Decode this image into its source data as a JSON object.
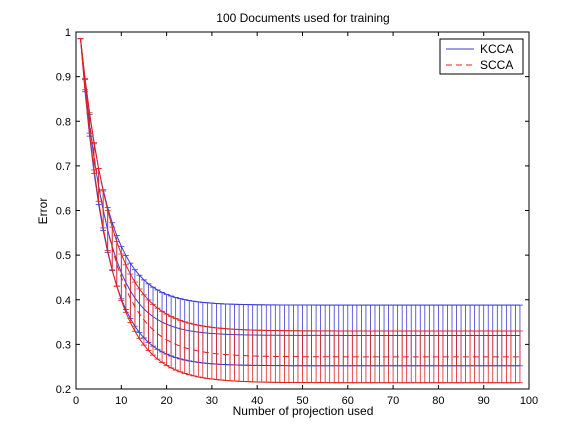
{
  "chart_data": {
    "type": "line",
    "title": "100 Documents used for training",
    "xlabel": "Number of projection used",
    "ylabel": "Error",
    "xlim": [
      0,
      100
    ],
    "ylim": [
      0.2,
      1.0
    ],
    "xticks": [
      0,
      10,
      20,
      30,
      40,
      50,
      60,
      70,
      80,
      90,
      100
    ],
    "yticks": [
      0.2,
      0.3,
      0.4,
      0.5,
      0.6,
      0.7,
      0.8,
      0.9,
      1.0
    ],
    "xtick_labels": [
      "0",
      "10",
      "20",
      "30",
      "40",
      "50",
      "60",
      "70",
      "80",
      "90",
      "100"
    ],
    "ytick_labels": [
      "0.2",
      "0.3",
      "0.4",
      "0.5",
      "0.6",
      "0.7",
      "0.8",
      "0.9",
      "1"
    ],
    "grid": false,
    "legend_position": "top-right",
    "series": [
      {
        "name": "KCCA",
        "color": "#3b3bd6",
        "line_style": "solid",
        "mean": {
          "x0": 1,
          "x1": 98,
          "y0": 0.985,
          "yinf": 0.32,
          "tau": 5.8
        },
        "error_half_width": {
          "x0": 1,
          "x1": 98,
          "e0": 0.0,
          "einf": 0.068,
          "tau": 4.5
        }
      },
      {
        "name": "SCCA",
        "color": "#e0201c",
        "line_style": "dashed",
        "mean": {
          "x0": 1,
          "x1": 98,
          "y0": 0.985,
          "yinf": 0.272,
          "tau": 6.5
        },
        "error_half_width": {
          "x0": 1,
          "x1": 98,
          "e0": 0.0,
          "einf": 0.058,
          "tau": 4.0
        }
      }
    ]
  }
}
